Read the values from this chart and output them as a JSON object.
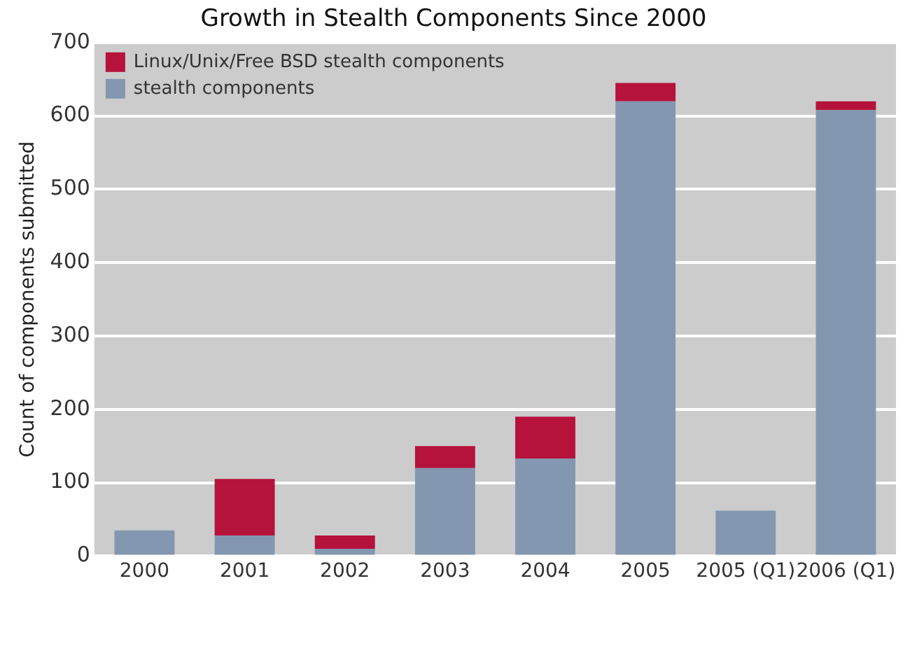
{
  "chart_data": {
    "type": "bar",
    "title": "Growth in Stealth Components Since 2000",
    "ylabel": "Count of components submitted",
    "categories": [
      "2000",
      "2001",
      "2002",
      "2003",
      "2004",
      "2005",
      "2005 (Q1)",
      "2006 (Q1)"
    ],
    "series": [
      {
        "name": "stealth components",
        "color": "#8497b0",
        "values": [
          35,
          28,
          10,
          120,
          133,
          620,
          62,
          608
        ]
      },
      {
        "name": "Linux/Unix/Free BSD stealth components",
        "color": "#b5123c",
        "values": [
          null,
          77,
          18,
          30,
          57,
          25,
          null,
          12
        ]
      }
    ],
    "stacked": true,
    "ylim": [
      0,
      700
    ],
    "yticks": [
      0,
      100,
      200,
      300,
      400,
      500,
      600,
      700
    ],
    "grid": "y",
    "legend": "top left"
  }
}
